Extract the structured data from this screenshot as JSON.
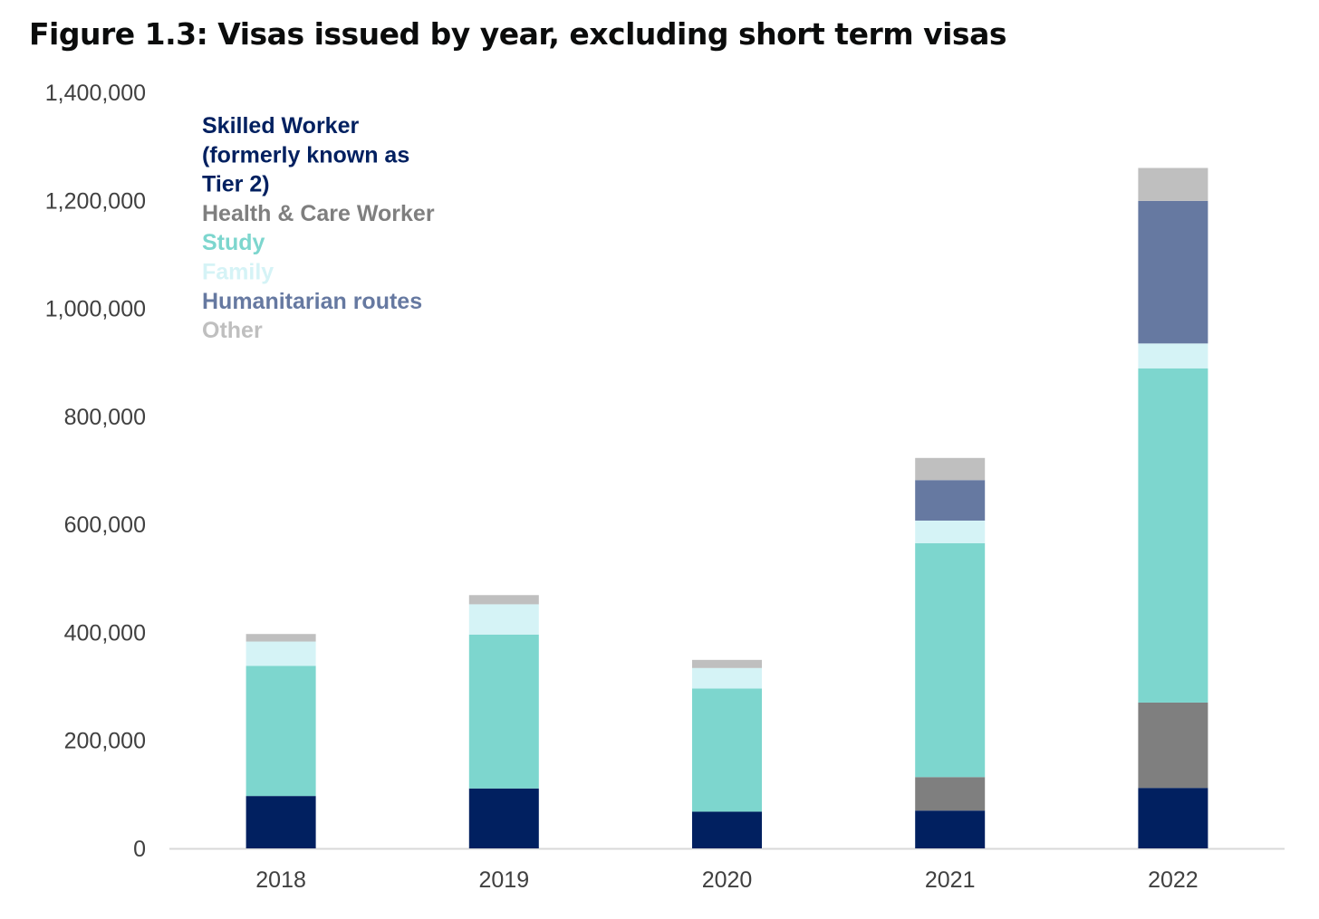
{
  "chart_data": {
    "type": "bar",
    "stacked": true,
    "title": "Figure 1.3: Visas issued by year, excluding short term visas",
    "categories": [
      "2018",
      "2019",
      "2020",
      "2021",
      "2022"
    ],
    "ylim": [
      0,
      1400000
    ],
    "yticks": [
      0,
      200000,
      400000,
      600000,
      800000,
      1000000,
      1200000,
      1400000
    ],
    "ytick_labels": [
      "0",
      "200,000",
      "400,000",
      "600,000",
      "800,000",
      "1,000,000",
      "1,200,000",
      "1,400,000"
    ],
    "grid": false,
    "legend_position": "top-left",
    "series": [
      {
        "name": "Skilled Worker (formerly known as Tier 2)",
        "legend_lines": [
          "Skilled Worker",
          "(formerly known as",
          "Tier 2)"
        ],
        "color": "#012060",
        "values": [
          97000,
          111000,
          68000,
          70000,
          112000
        ]
      },
      {
        "name": "Health & Care Worker",
        "legend_lines": [
          "Health & Care Worker"
        ],
        "color": "#7f7f7f",
        "values": [
          0,
          0,
          0,
          62000,
          158000
        ]
      },
      {
        "name": "Study",
        "legend_lines": [
          "Study"
        ],
        "color": "#7dd6ce",
        "values": [
          241000,
          285000,
          228000,
          433000,
          619000
        ]
      },
      {
        "name": "Family",
        "legend_lines": [
          "Family"
        ],
        "color": "#d5f3f6",
        "values": [
          45000,
          56000,
          38000,
          42000,
          46000
        ]
      },
      {
        "name": "Humanitarian routes",
        "legend_lines": [
          "Humanitarian routes"
        ],
        "color": "#6679a1",
        "values": [
          0,
          0,
          0,
          75000,
          264000
        ]
      },
      {
        "name": "Other",
        "legend_lines": [
          "Other"
        ],
        "color": "#bfbfbf",
        "values": [
          14000,
          17000,
          15000,
          41000,
          61000
        ]
      }
    ]
  }
}
